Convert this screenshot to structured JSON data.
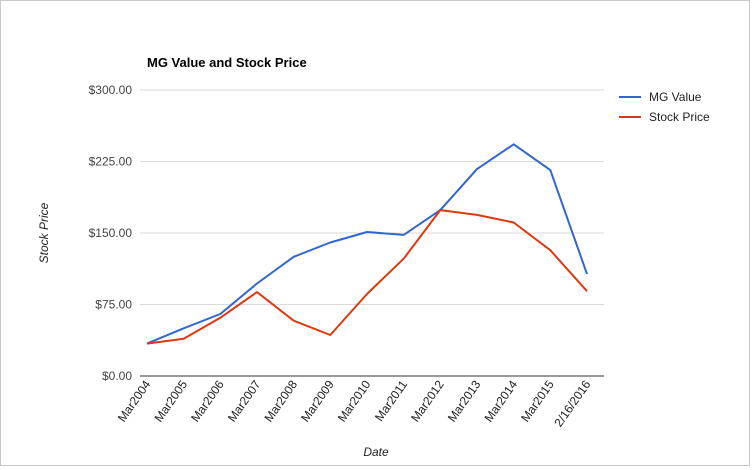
{
  "chart_data": {
    "type": "line",
    "title": "MG Value and Stock Price",
    "xlabel": "Date",
    "ylabel": "Stock Price",
    "ylim": [
      0,
      300
    ],
    "yticks": [
      "$0.00",
      "$75.00",
      "$150.00",
      "$225.00",
      "$300.00"
    ],
    "ytick_values": [
      0,
      75,
      150,
      225,
      300
    ],
    "categories": [
      "Mar2004",
      "Mar2005",
      "Mar2006",
      "Mar2007",
      "Mar2008",
      "Mar2009",
      "Mar2010",
      "Mar2011",
      "Mar2012",
      "Mar2013",
      "Mar2014",
      "Mar2015",
      "2/16/2016"
    ],
    "grid": true,
    "legend": "right",
    "series": [
      {
        "name": "MG Value",
        "color": "#3366cc",
        "values": [
          34,
          50,
          65,
          97,
          125,
          140,
          151,
          148,
          174,
          217,
          243,
          216,
          107
        ]
      },
      {
        "name": "Stock Price",
        "color": "#dc3912",
        "values": [
          34,
          39,
          61,
          88,
          58,
          43,
          86,
          123,
          174,
          169,
          161,
          132,
          89
        ]
      }
    ]
  }
}
